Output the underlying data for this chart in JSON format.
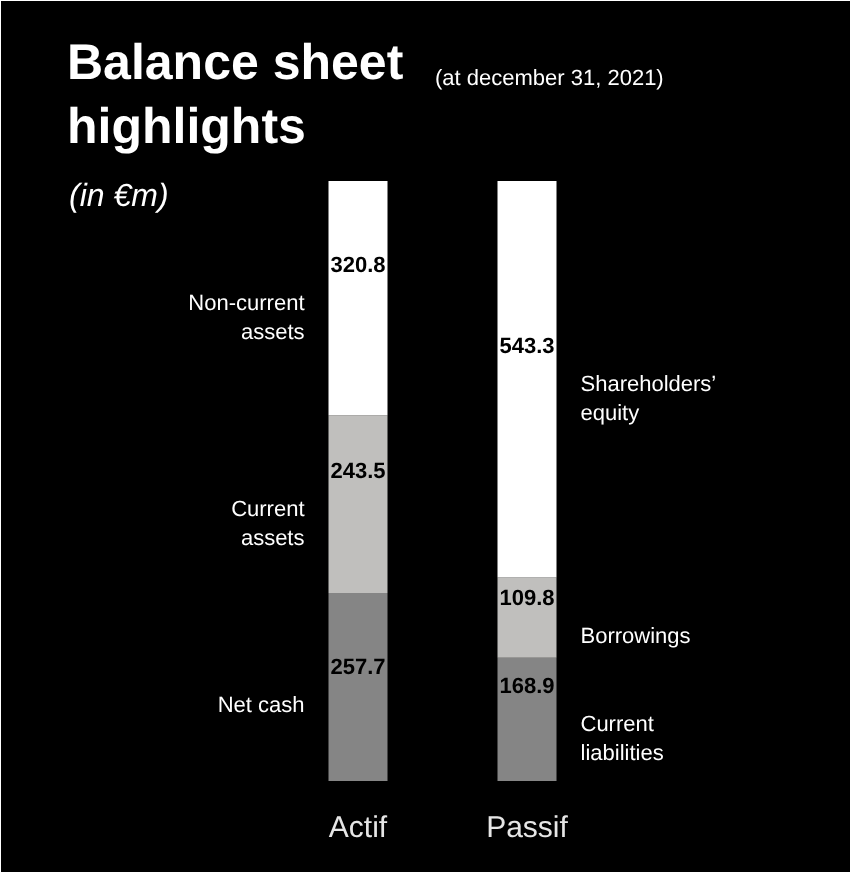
{
  "chart_data": {
    "type": "bar",
    "title": "Balance sheet highlights",
    "subtitle": "(at december 31, 2021)",
    "annotations": [
      "(in €m)"
    ],
    "categories": [
      "Actif",
      "Passif"
    ],
    "stacked": true,
    "data_labels": true,
    "series": [
      {
        "name": "Net cash",
        "color": "#858585",
        "values": [
          257.7,
          null
        ]
      },
      {
        "name": "Current liabilities",
        "color": "#858585",
        "values": [
          null,
          168.9
        ]
      },
      {
        "name": "Current assets",
        "color": "#c0bfbd",
        "values": [
          243.5,
          null
        ]
      },
      {
        "name": "Borrowings",
        "color": "#c0bfbd",
        "values": [
          null,
          109.8
        ]
      },
      {
        "name": "Non-current assets",
        "color": "#ffffff",
        "values": [
          320.8,
          null
        ]
      },
      {
        "name": "Shareholders’ equity",
        "color": "#ffffff",
        "values": [
          null,
          543.3
        ]
      }
    ]
  }
}
